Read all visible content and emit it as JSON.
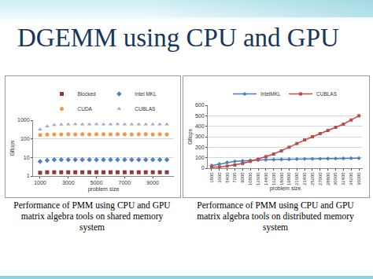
{
  "title": "DGEMM using CPU and GPU",
  "chart_data": [
    {
      "type": "scatter",
      "caption": "Performance of PMM using CPU and GPU matrix algebra tools on shared memory system",
      "x_label": "problem size",
      "y_label": "Gflops",
      "x": [
        1000,
        1500,
        2000,
        2500,
        3000,
        3500,
        4000,
        4500,
        5000,
        5500,
        6000,
        6500,
        7000,
        7500,
        8000,
        8500,
        9000,
        9500,
        10000
      ],
      "series": [
        {
          "name": "Blocked",
          "color": "#953735",
          "marker": "square",
          "values": [
            1.5,
            1.6,
            1.6,
            1.6,
            1.6,
            1.6,
            1.6,
            1.6,
            1.6,
            1.6,
            1.6,
            1.6,
            1.6,
            1.6,
            1.6,
            1.6,
            1.6,
            1.6,
            1.6
          ]
        },
        {
          "name": "Intel MKL",
          "color": "#4f81bd",
          "marker": "diamond",
          "values": [
            6,
            7,
            7.5,
            7.5,
            7.5,
            7.5,
            7.5,
            7.5,
            7.5,
            7.5,
            7.5,
            7.5,
            7.5,
            7.5,
            7.5,
            7.5,
            7.5,
            7.5,
            7.5
          ]
        },
        {
          "name": "CUDA",
          "color": "#f79646",
          "marker": "circle",
          "values": [
            160,
            170,
            175,
            175,
            180,
            175,
            180,
            175,
            180,
            180,
            175,
            180,
            180,
            175,
            180,
            180,
            175,
            180,
            175
          ]
        },
        {
          "name": "CUBLAS",
          "color": "#b3a2c7",
          "marker": "triangle",
          "values": [
            320,
            470,
            560,
            590,
            600,
            610,
            600,
            600,
            610,
            600,
            600,
            610,
            600,
            600,
            605,
            600,
            600,
            600,
            600
          ]
        }
      ],
      "xlim": [
        500,
        10500
      ],
      "xticks": [
        1000,
        3000,
        5000,
        7000,
        9000
      ],
      "ylim": [
        1,
        1000
      ],
      "yticks": [
        1,
        10,
        100,
        1000
      ],
      "log": "y",
      "grid": true,
      "legend": "top"
    },
    {
      "type": "line",
      "caption": "Performance of PMM using CPU and GPU matrix algebra tools on distributed memory system",
      "x_label": "problem size",
      "y_label": "Gflops",
      "categories": [
        "1800",
        "3600",
        "5400",
        "7200",
        "9000",
        "10800",
        "12600",
        "14400",
        "16200",
        "18000",
        "19800",
        "21600",
        "23400",
        "25200",
        "27000",
        "28800",
        "30600",
        "32400",
        "34200",
        "36000"
      ],
      "series": [
        {
          "name": "IntelMKL",
          "color": "#4a7ebb",
          "marker": "diamond",
          "values": [
            25,
            40,
            55,
            65,
            70,
            75,
            78,
            80,
            82,
            84,
            85,
            87,
            88,
            89,
            90,
            91,
            92,
            93,
            94,
            95
          ]
        },
        {
          "name": "CUBLAS",
          "color": "#be4b48",
          "marker": "square",
          "values": [
            10,
            12,
            20,
            30,
            45,
            65,
            85,
            110,
            135,
            165,
            200,
            235,
            270,
            300,
            330,
            360,
            390,
            420,
            460,
            500
          ]
        }
      ],
      "ylim": [
        0,
        600
      ],
      "yticks": [
        0,
        100,
        200,
        300,
        400,
        500,
        600
      ],
      "grid": true,
      "legend": "top"
    }
  ]
}
